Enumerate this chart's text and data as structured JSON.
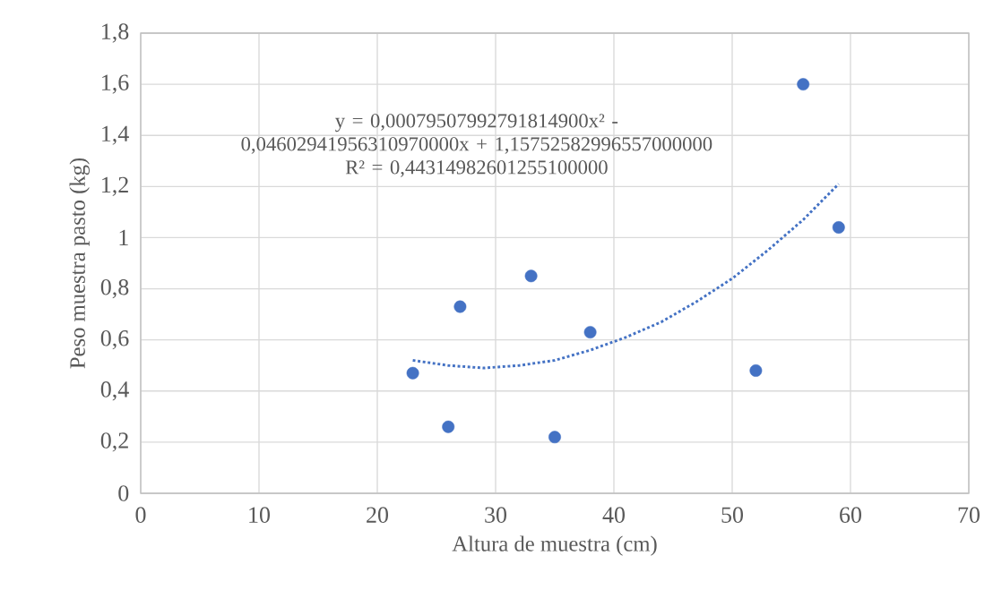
{
  "chart_data": {
    "type": "scatter",
    "xlabel": "Altura de muestra (cm)",
    "ylabel": "Peso muestra pasto (kg)",
    "annotations": [
      "y = 0,00079507992791814900x² - 0,04602941956310970000x + 1,15752582996557000000",
      "R² = 0,44314982601255100000"
    ],
    "xlim": [
      0,
      70
    ],
    "xticks": [
      0,
      10,
      20,
      30,
      40,
      50,
      60,
      70
    ],
    "ylim": [
      0,
      1.8
    ],
    "yticks": [
      {
        "value": 0,
        "label": "0"
      },
      {
        "value": 0.2,
        "label": "0,2"
      },
      {
        "value": 0.4,
        "label": "0,4"
      },
      {
        "value": 0.6,
        "label": "0,6"
      },
      {
        "value": 0.8,
        "label": "0,8"
      },
      {
        "value": 1,
        "label": "1"
      },
      {
        "value": 1.2,
        "label": "1,2"
      },
      {
        "value": 1.4,
        "label": "1,4"
      },
      {
        "value": 1.6,
        "label": "1,6"
      },
      {
        "value": 1.8,
        "label": "1,8"
      }
    ],
    "grid": true,
    "series": [
      {
        "color": "#4472c4",
        "marker": "circle",
        "x": [
          23,
          26,
          27,
          33,
          35,
          38,
          52,
          56,
          59
        ],
        "values": [
          0.47,
          0.26,
          0.73,
          0.85,
          0.22,
          0.63,
          0.48,
          1.6,
          1.04
        ]
      },
      {
        "type": "line",
        "color": "#4472c4",
        "marker": "none",
        "line_style": "dotted",
        "x": [
          23,
          26,
          29,
          32,
          35,
          38,
          41,
          44,
          47,
          50,
          53,
          56,
          59
        ],
        "values": [
          0.52,
          0.5,
          0.49,
          0.5,
          0.52,
          0.56,
          0.61,
          0.67,
          0.75,
          0.84,
          0.95,
          1.07,
          1.21
        ]
      }
    ]
  }
}
